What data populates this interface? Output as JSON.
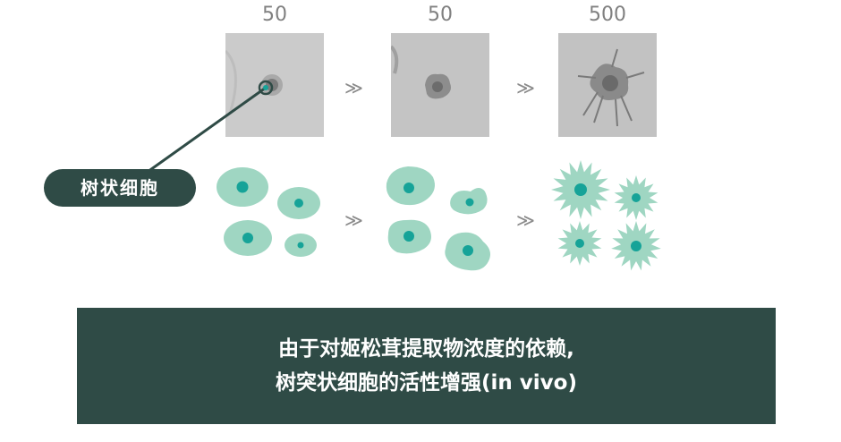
{
  "concentrations": [
    "50",
    "50",
    "500"
  ],
  "arrow_glyph": "≫",
  "cell_label": "树状细胞",
  "caption": {
    "line1": "由于对姬松茸提取物浓度的依赖,",
    "line2": "树突状细胞的活性增强(in vivo)"
  },
  "colors": {
    "cell_fill": "#9fd6c2",
    "cell_nucleus": "#16a398",
    "dark_green": "#2f4b46",
    "photo_bg": "#c9c9c9"
  }
}
